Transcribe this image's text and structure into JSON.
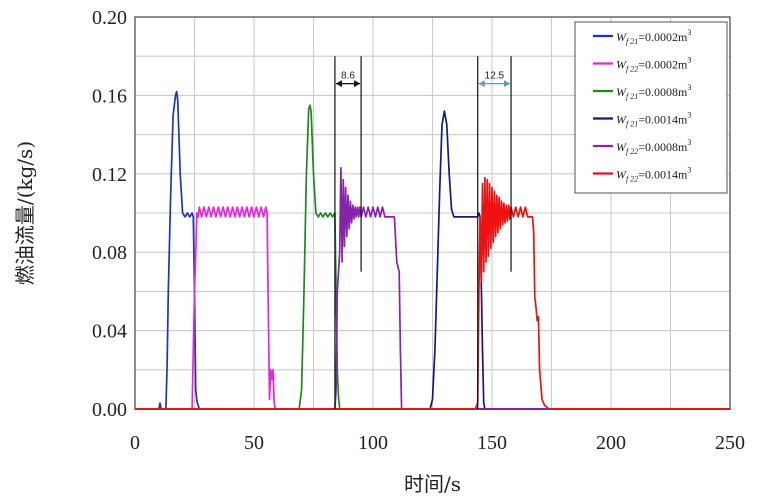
{
  "chart_data": {
    "type": "line",
    "xlabel": "时间/s",
    "ylabel": "燃油流量/(kg/s)",
    "xlim": [
      0,
      250
    ],
    "ylim": [
      0.0,
      0.2
    ],
    "x_ticks": [
      "0",
      "50",
      "100",
      "150",
      "200",
      "250"
    ],
    "y_ticks": [
      "0.00",
      "0.04",
      "0.08",
      "0.12",
      "0.16",
      "0.20"
    ],
    "grid": true,
    "legend_position": "top-right",
    "series": [
      {
        "name": "W_{f21}=0.0002m³",
        "legend_sym": "W",
        "legend_sub": "f 21",
        "legend_val": "=0.0002m",
        "legend_sup": "3",
        "color": "#2233bb",
        "x": [
          0,
          10,
          10.5,
          11,
          12,
          13,
          13.5,
          14,
          15,
          16,
          17,
          17.5,
          18,
          19,
          20,
          21,
          22,
          23,
          24,
          24.5,
          25,
          25.5,
          26,
          26.5,
          27,
          250
        ],
        "y": [
          0,
          0,
          0.003,
          0,
          0,
          0,
          0.022,
          0.06,
          0.11,
          0.15,
          0.16,
          0.162,
          0.157,
          0.12,
          0.1,
          0.098,
          0.1,
          0.098,
          0.1,
          0.098,
          0.06,
          0.01,
          0.004,
          0.002,
          0,
          0
        ]
      },
      {
        "name": "W_{f22}=0.0002m³",
        "legend_sym": "W",
        "legend_sub": "f 22",
        "legend_val": "=0.0002m",
        "legend_sup": "3",
        "color": "#ee22dd",
        "x": [
          0,
          24,
          25,
          26,
          26.5,
          27,
          28,
          29,
          30,
          31,
          32,
          33,
          34,
          35,
          36,
          37,
          38,
          39,
          40,
          41,
          42,
          43,
          44,
          45,
          46,
          47,
          48,
          49,
          50,
          51,
          52,
          53,
          54,
          55,
          55.5,
          56,
          56.5,
          57,
          57.5,
          58,
          58.5,
          59,
          250
        ],
        "y": [
          0,
          0,
          0.06,
          0.1,
          0.098,
          0.103,
          0.098,
          0.103,
          0.098,
          0.103,
          0.098,
          0.103,
          0.098,
          0.103,
          0.098,
          0.103,
          0.098,
          0.103,
          0.098,
          0.103,
          0.098,
          0.103,
          0.098,
          0.103,
          0.098,
          0.103,
          0.098,
          0.103,
          0.098,
          0.103,
          0.098,
          0.103,
          0.098,
          0.103,
          0.1,
          0.05,
          0.005,
          0.02,
          0.015,
          0.02,
          0.003,
          0,
          0
        ]
      },
      {
        "name": "W_{f21}=0.0008m³",
        "legend_sym": "W",
        "legend_sub": "f 21",
        "legend_val": "=0.0008m",
        "legend_sup": "3",
        "color": "#1a8a1a",
        "x": [
          0,
          69,
          70,
          71,
          72,
          73,
          73.5,
          74,
          75,
          76,
          77,
          78,
          79,
          80,
          81,
          82,
          83,
          84,
          84.5,
          85,
          85.5,
          86,
          250
        ],
        "y": [
          0,
          0,
          0.01,
          0.06,
          0.12,
          0.153,
          0.155,
          0.152,
          0.12,
          0.1,
          0.098,
          0.1,
          0.098,
          0.1,
          0.098,
          0.1,
          0.098,
          0.1,
          0.06,
          0.02,
          0.006,
          0,
          0
        ]
      },
      {
        "name": "W_{f21}=0.0014m³",
        "legend_sym": "W",
        "legend_sub": "f 21",
        "legend_val": "=0.0014m",
        "legend_sup": "3",
        "color": "#101a80",
        "x": [
          0,
          124,
          125,
          126,
          127,
          128,
          129,
          130,
          131,
          132,
          133,
          134,
          135,
          140,
          143,
          144,
          144.5,
          145,
          146,
          146.5,
          147,
          250
        ],
        "y": [
          0,
          0,
          0.005,
          0.03,
          0.07,
          0.11,
          0.145,
          0.152,
          0.145,
          0.12,
          0.102,
          0.098,
          0.098,
          0.098,
          0.098,
          0.098,
          0.1,
          0.098,
          0.03,
          0.003,
          0,
          0
        ]
      },
      {
        "name": "W_{f22}=0.0008m³",
        "legend_sym": "W",
        "legend_sub": "f 22",
        "legend_val": "=0.0008m",
        "legend_sup": "3",
        "color": "#8822aa",
        "x": [
          0,
          84,
          84.5,
          85,
          86,
          86.5,
          87,
          87.5,
          88,
          88.5,
          89,
          89.5,
          90,
          90.5,
          91,
          91.5,
          92,
          92.5,
          93,
          93.5,
          94,
          94.5,
          95,
          96,
          97,
          98,
          99,
          100,
          101,
          102,
          103,
          104,
          105,
          106,
          107,
          108,
          109,
          110,
          111,
          111.5,
          112,
          250
        ],
        "y": [
          0,
          0,
          0.01,
          0.06,
          0.08,
          0.123,
          0.075,
          0.117,
          0.083,
          0.113,
          0.088,
          0.109,
          0.092,
          0.106,
          0.095,
          0.104,
          0.097,
          0.103,
          0.098,
          0.103,
          0.098,
          0.103,
          0.098,
          0.103,
          0.098,
          0.103,
          0.098,
          0.103,
          0.098,
          0.103,
          0.098,
          0.103,
          0.098,
          0.098,
          0.098,
          0.098,
          0.098,
          0.075,
          0.07,
          0.03,
          0,
          0
        ]
      },
      {
        "name": "W_{f22}=0.0014m³",
        "legend_sym": "W",
        "legend_sub": "f 22",
        "legend_val": "=0.0014m",
        "legend_sup": "3",
        "color": "#ee1111",
        "x": [
          0,
          143,
          144,
          144.5,
          145,
          145.5,
          146,
          146.5,
          147,
          147.5,
          148,
          148.5,
          149,
          149.5,
          150,
          150.5,
          151,
          151.5,
          152,
          152.5,
          153,
          153.5,
          154,
          154.5,
          155,
          155.5,
          156,
          156.5,
          157,
          157.5,
          158,
          159,
          160,
          161,
          162,
          163,
          164,
          165,
          166,
          167,
          167.5,
          168,
          168.5,
          169,
          169.5,
          170,
          171,
          172,
          173,
          174,
          250
        ],
        "y": [
          0,
          0,
          0.003,
          0.06,
          0.098,
          0.065,
          0.115,
          0.07,
          0.118,
          0.075,
          0.117,
          0.078,
          0.115,
          0.082,
          0.113,
          0.085,
          0.111,
          0.088,
          0.109,
          0.09,
          0.108,
          0.092,
          0.106,
          0.094,
          0.105,
          0.095,
          0.104,
          0.096,
          0.104,
          0.097,
          0.103,
          0.098,
          0.103,
          0.098,
          0.103,
          0.098,
          0.103,
          0.098,
          0.098,
          0.098,
          0.09,
          0.057,
          0.052,
          0.045,
          0.047,
          0.02,
          0.005,
          0.002,
          0.001,
          0,
          0
        ]
      }
    ],
    "annotations": [
      {
        "label": "8.6",
        "x_start": 84,
        "x_end": 95,
        "y_arrow": 0.166,
        "y_bottom": 0.07,
        "y_top": 0.18,
        "arrow_color": "#111111"
      },
      {
        "label": "12.5",
        "x_start": 144,
        "x_end": 158,
        "y_arrow": 0.166,
        "y_bottom": 0.07,
        "y_top": 0.18,
        "arrow_color": "#5a9ad6"
      }
    ]
  }
}
